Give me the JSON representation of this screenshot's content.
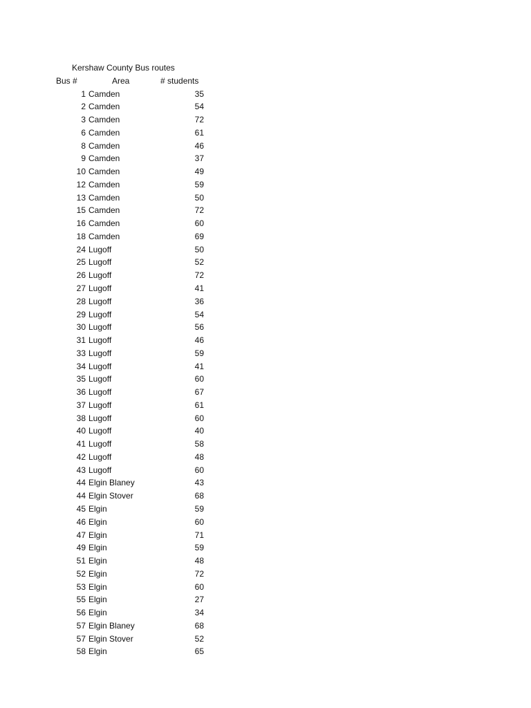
{
  "title": "Kershaw County Bus routes",
  "headers": {
    "bus": "Bus #",
    "area": "Area",
    "students": "# students"
  },
  "rows": [
    {
      "bus": "1",
      "area": "Camden",
      "students": "35"
    },
    {
      "bus": "2",
      "area": "Camden",
      "students": "54"
    },
    {
      "bus": "3",
      "area": "Camden",
      "students": "72"
    },
    {
      "bus": "6",
      "area": "Camden",
      "students": "61"
    },
    {
      "bus": "8",
      "area": "Camden",
      "students": "46"
    },
    {
      "bus": "9",
      "area": "Camden",
      "students": "37"
    },
    {
      "bus": "10",
      "area": "Camden",
      "students": "49"
    },
    {
      "bus": "12",
      "area": "Camden",
      "students": "59"
    },
    {
      "bus": "13",
      "area": "Camden",
      "students": "50"
    },
    {
      "bus": "15",
      "area": "Camden",
      "students": "72"
    },
    {
      "bus": "16",
      "area": "Camden",
      "students": "60"
    },
    {
      "bus": "18",
      "area": "Camden",
      "students": "69"
    },
    {
      "bus": "24",
      "area": "Lugoff",
      "students": "50"
    },
    {
      "bus": "25",
      "area": "Lugoff",
      "students": "52"
    },
    {
      "bus": "26",
      "area": "Lugoff",
      "students": "72"
    },
    {
      "bus": "27",
      "area": "Lugoff",
      "students": "41"
    },
    {
      "bus": "28",
      "area": "Lugoff",
      "students": "36"
    },
    {
      "bus": "29",
      "area": "Lugoff",
      "students": "54"
    },
    {
      "bus": "30",
      "area": "Lugoff",
      "students": "56"
    },
    {
      "bus": "31",
      "area": "Lugoff",
      "students": "46"
    },
    {
      "bus": "33",
      "area": "Lugoff",
      "students": "59"
    },
    {
      "bus": "34",
      "area": "Lugoff",
      "students": "41"
    },
    {
      "bus": "35",
      "area": "Lugoff",
      "students": "60"
    },
    {
      "bus": "36",
      "area": "Lugoff",
      "students": "67"
    },
    {
      "bus": "37",
      "area": "Lugoff",
      "students": "61"
    },
    {
      "bus": "38",
      "area": "Lugoff",
      "students": "60"
    },
    {
      "bus": "40",
      "area": "Lugoff",
      "students": "40"
    },
    {
      "bus": "41",
      "area": "Lugoff",
      "students": "58"
    },
    {
      "bus": "42",
      "area": "Lugoff",
      "students": "48"
    },
    {
      "bus": "43",
      "area": "Lugoff",
      "students": "60"
    },
    {
      "bus": "44",
      "area": "Elgin Blaney",
      "students": "43"
    },
    {
      "bus": "44",
      "area": "Elgin Stover",
      "students": "68"
    },
    {
      "bus": "45",
      "area": "Elgin",
      "students": "59"
    },
    {
      "bus": "46",
      "area": "Elgin",
      "students": "60"
    },
    {
      "bus": "47",
      "area": "Elgin",
      "students": "71"
    },
    {
      "bus": "49",
      "area": "Elgin",
      "students": "59"
    },
    {
      "bus": "51",
      "area": "Elgin",
      "students": "48"
    },
    {
      "bus": "52",
      "area": "Elgin",
      "students": "72"
    },
    {
      "bus": "53",
      "area": "Elgin",
      "students": "60"
    },
    {
      "bus": "55",
      "area": "Elgin",
      "students": "27"
    },
    {
      "bus": "56",
      "area": "Elgin",
      "students": "34"
    },
    {
      "bus": "57",
      "area": "Elgin Blaney",
      "students": "68"
    },
    {
      "bus": "57",
      "area": "Elgin Stover",
      "students": "52"
    },
    {
      "bus": "58",
      "area": "Elgin",
      "students": "65"
    }
  ]
}
